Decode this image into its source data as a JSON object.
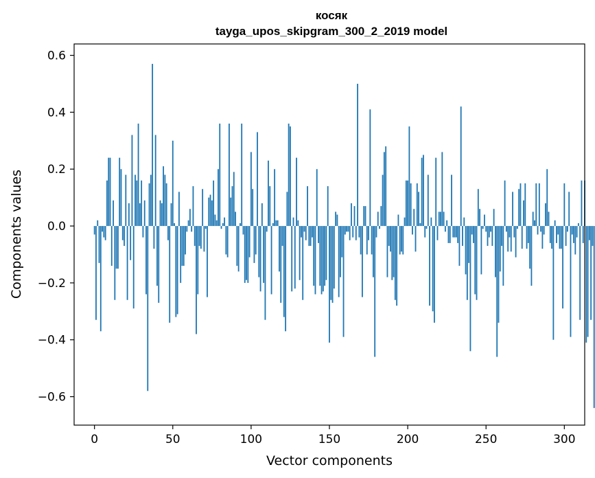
{
  "chart_data": {
    "type": "bar",
    "title": "косяк",
    "subtitle": "tayga_upos_skipgram_300_2_2019 model",
    "xlabel": "Vector components",
    "ylabel": "Components values",
    "xlim": [
      -13,
      313
    ],
    "ylim": [
      -0.7,
      0.64
    ],
    "x_ticks": [
      0,
      50,
      100,
      150,
      200,
      250,
      300
    ],
    "x_tick_labels": [
      "0",
      "50",
      "100",
      "150",
      "200",
      "250",
      "300"
    ],
    "y_ticks": [
      -0.6,
      -0.4,
      -0.2,
      0.0,
      0.2,
      0.4,
      0.6
    ],
    "y_tick_labels": [
      "−0.6",
      "−0.4",
      "−0.2",
      "0.0",
      "0.2",
      "0.4",
      "0.6"
    ],
    "grid": false,
    "bar_color": "#1f77b4",
    "values": [
      -0.03,
      -0.33,
      0.02,
      -0.13,
      -0.37,
      -0.02,
      -0.04,
      -0.05,
      0.16,
      0.24,
      0.24,
      -0.14,
      0.09,
      -0.26,
      -0.15,
      -0.15,
      0.24,
      0.2,
      -0.05,
      -0.07,
      0.18,
      -0.26,
      0.08,
      -0.12,
      0.32,
      -0.29,
      0.18,
      0.16,
      0.36,
      0.08,
      0.16,
      -0.04,
      0.09,
      -0.24,
      -0.58,
      0.15,
      0.18,
      0.57,
      -0.08,
      0.32,
      -0.21,
      -0.27,
      0.09,
      0.08,
      0.21,
      0.18,
      0.15,
      -0.05,
      -0.34,
      0.08,
      0.3,
      0.01,
      -0.32,
      -0.31,
      0.12,
      -0.2,
      -0.14,
      -0.14,
      -0.1,
      -0.02,
      0.02,
      0.06,
      -0.02,
      0.14,
      -0.07,
      -0.38,
      -0.24,
      -0.07,
      -0.08,
      0.13,
      -0.09,
      -0.01,
      -0.25,
      0.1,
      0.11,
      0.09,
      0.16,
      0.04,
      0.02,
      0.2,
      0.36,
      -0.01,
      0.01,
      0.03,
      -0.1,
      -0.11,
      0.36,
      0.1,
      0.14,
      0.19,
      0.05,
      -0.14,
      -0.16,
      0.01,
      0.36,
      -0.03,
      -0.2,
      -0.19,
      -0.2,
      -0.11,
      0.26,
      0.13,
      -0.13,
      -0.1,
      0.33,
      -0.18,
      -0.23,
      0.08,
      -0.2,
      -0.33,
      -0.02,
      0.23,
      0.14,
      -0.24,
      0.01,
      0.2,
      0.02,
      0.02,
      -0.16,
      -0.27,
      -0.07,
      -0.32,
      -0.37,
      0.12,
      0.36,
      0.35,
      -0.23,
      0.03,
      -0.22,
      0.24,
      0.02,
      -0.19,
      -0.04,
      -0.26,
      -0.02,
      -0.05,
      0.14,
      -0.07,
      -0.07,
      -0.04,
      -0.21,
      -0.24,
      0.2,
      -0.06,
      -0.21,
      -0.24,
      -0.23,
      -0.21,
      -0.19,
      0.14,
      -0.41,
      -0.26,
      -0.27,
      -0.22,
      0.05,
      0.04,
      -0.25,
      -0.18,
      -0.11,
      -0.39,
      -0.03,
      -0.02,
      -0.02,
      -0.05,
      0.08,
      -0.04,
      0.07,
      -0.05,
      0.5,
      -0.04,
      -0.1,
      -0.25,
      0.07,
      0.07,
      -0.1,
      -0.05,
      0.41,
      -0.1,
      -0.18,
      -0.46,
      -0.04,
      0.05,
      -0.01,
      0.07,
      0.18,
      0.26,
      0.28,
      -0.18,
      -0.07,
      -0.09,
      -0.19,
      -0.18,
      -0.26,
      -0.28,
      0.04,
      -0.1,
      -0.09,
      -0.1,
      0.03,
      0.16,
      0.16,
      0.35,
      0.15,
      -0.03,
      0.06,
      -0.09,
      0.15,
      0.12,
      0.01,
      0.24,
      0.25,
      -0.04,
      -0.01,
      0.18,
      -0.28,
      0.03,
      -0.3,
      -0.34,
      0.24,
      -0.05,
      0.05,
      0.05,
      0.26,
      0.05,
      -0.02,
      0.02,
      -0.06,
      -0.06,
      0.18,
      -0.04,
      -0.04,
      -0.04,
      -0.06,
      -0.14,
      0.42,
      -0.07,
      0.03,
      -0.17,
      -0.26,
      -0.13,
      -0.44,
      -0.03,
      -0.06,
      -0.24,
      -0.26,
      0.13,
      0.06,
      -0.17,
      -0.01,
      0.04,
      -0.02,
      -0.07,
      -0.04,
      -0.02,
      -0.07,
      0.06,
      -0.18,
      -0.46,
      -0.34,
      -0.16,
      -0.07,
      -0.21,
      0.16,
      -0.02,
      -0.09,
      -0.04,
      -0.09,
      0.12,
      -0.04,
      -0.11,
      -0.01,
      0.13,
      0.15,
      -0.08,
      0.09,
      0.15,
      -0.08,
      -0.06,
      -0.15,
      -0.21,
      0.05,
      0.02,
      0.15,
      -0.03,
      0.15,
      -0.02,
      -0.08,
      -0.03,
      0.08,
      0.2,
      0.05,
      -0.06,
      -0.08,
      -0.4,
      0.02,
      -0.06,
      -0.03,
      -0.08,
      -0.08,
      -0.29,
      0.15,
      -0.07,
      -0.02,
      0.12,
      -0.39,
      -0.03,
      -0.06,
      -0.1,
      -0.04,
      0.01,
      -0.33,
      0.16,
      -0.06,
      0.16,
      -0.41,
      -0.39,
      -0.05,
      -0.33,
      -0.07,
      -0.64
    ]
  }
}
